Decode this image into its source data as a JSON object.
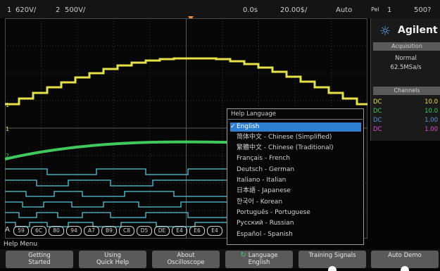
{
  "status_bar": {
    "ch1": "1",
    "ch1_scale": "620V/",
    "ch2": "2",
    "ch2_scale": "500V/",
    "delay": "0.0s",
    "timebase": "20.00$/",
    "trigger_mode": "Auto",
    "trigger_flag": "Pel",
    "trigger_source": "1",
    "trigger_level": "500?"
  },
  "brand": {
    "name": "Agilent",
    "icon": "sun-icon"
  },
  "acquisition": {
    "header": "Acquisition",
    "mode": "Normal",
    "rate": "62.5MSa/s"
  },
  "channels": {
    "header": "Channels",
    "rows": [
      {
        "coupling": "DC",
        "scale": "10.0",
        "color": "#e6e04a"
      },
      {
        "coupling": "DC",
        "scale": "10.0",
        "color": "#3fc95a"
      },
      {
        "coupling": "DC",
        "scale": "1.00",
        "color": "#5b8fe0"
      },
      {
        "coupling": "DC",
        "scale": "1.00",
        "color": "#e04ad0"
      }
    ]
  },
  "help_language_menu": {
    "title": "Help Language",
    "items": [
      {
        "label": "English",
        "selected": true
      },
      {
        "label": "简体中文 - Chinese (Simplified)"
      },
      {
        "label": "繁體中文 - Chinese (Traditional)"
      },
      {
        "label": "Français - French"
      },
      {
        "label": "Deutsch - German"
      },
      {
        "label": "Italiano - Italian"
      },
      {
        "label": "日本語 - Japanese"
      },
      {
        "label": "한국어 - Korean"
      },
      {
        "label": "Português - Portuguese"
      },
      {
        "label": "Русский - Russian"
      },
      {
        "label": "Español - Spanish"
      }
    ]
  },
  "bus": {
    "label": "A",
    "values": [
      "59",
      "6C",
      "80",
      "94",
      "A7",
      "B9",
      "C8",
      "D5",
      "DE",
      "E4",
      "E6",
      "E4"
    ]
  },
  "softkey_menu_title": "Help Menu",
  "softkeys": [
    {
      "line1": "Getting",
      "line2": "Started"
    },
    {
      "line1": "Using",
      "line2": "Quick Help"
    },
    {
      "line1": "About",
      "line2": "Oscilloscope"
    },
    {
      "line1": "Language",
      "line2": "English",
      "icon": "rotate-icon"
    },
    {
      "line1": "Training Signals",
      "line2": ""
    },
    {
      "line1": "Auto Demo",
      "line2": ""
    }
  ],
  "colors": {
    "ch1": "#e6e04a",
    "ch2": "#3fc95a",
    "digital": "#58c6da",
    "accent": "#2e7fd1",
    "trigger": "#f08a3a"
  }
}
